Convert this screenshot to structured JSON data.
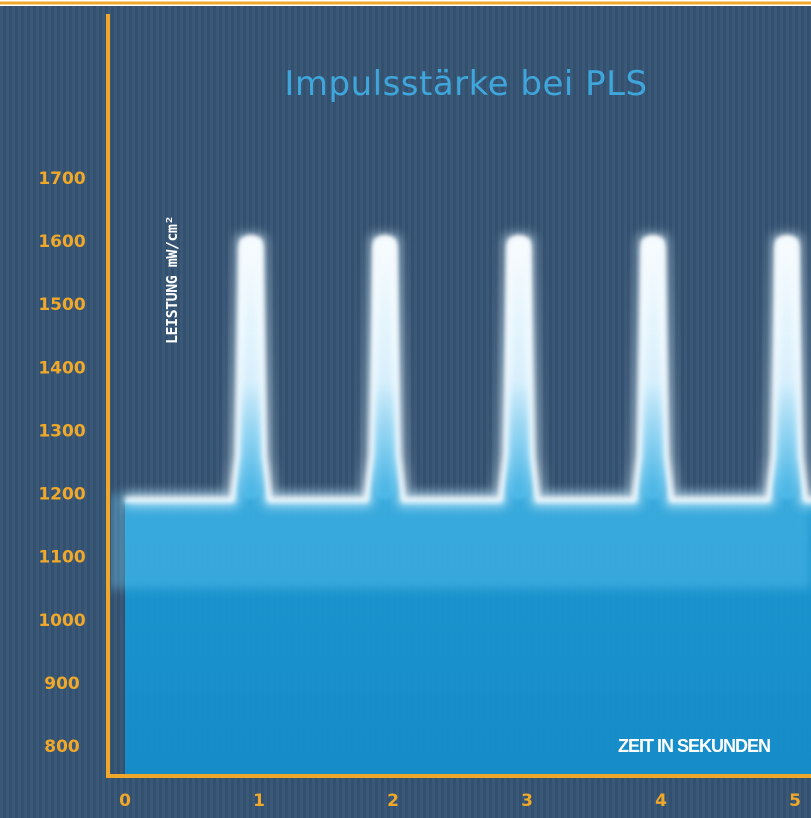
{
  "chart_data": {
    "type": "line",
    "title": "Impulsstärke bei PLS",
    "ylabel": "LEISTUNG mW/cm²",
    "xlabel": "ZEIT IN SEKUNDEN",
    "y_ticks": [
      "1700",
      "1600",
      "1500",
      "1400",
      "1300",
      "1200",
      "1100",
      "1000",
      "900",
      "800"
    ],
    "x_ticks": [
      "0",
      "1",
      "2",
      "3",
      "4",
      "5"
    ],
    "xlim": [
      0,
      5.2
    ],
    "ylim": [
      750,
      1800
    ],
    "grid": false,
    "series": [
      {
        "x": [
          0.0,
          0.8,
          0.84,
          0.88,
          1.0,
          1.04,
          1.08,
          1.8,
          1.84,
          1.88,
          2.0,
          2.04,
          2.08,
          2.8,
          2.84,
          2.88,
          3.0,
          3.04,
          3.08,
          3.8,
          3.84,
          3.88,
          4.0,
          4.04,
          4.08,
          4.8,
          4.84,
          4.88,
          5.0,
          5.04,
          5.08,
          5.2
        ],
        "y": [
          1190,
          1190,
          1260,
          1600,
          1600,
          1260,
          1190,
          1190,
          1260,
          1600,
          1600,
          1260,
          1190,
          1190,
          1260,
          1600,
          1600,
          1260,
          1190,
          1190,
          1260,
          1600,
          1600,
          1260,
          1190,
          1190,
          1260,
          1600,
          1600,
          1260,
          1190,
          1190
        ]
      }
    ],
    "colors": {
      "background": "#34506f",
      "axis": "#f0a82a",
      "glow": "#1ba5e0",
      "title": "#3fa6dc"
    }
  }
}
